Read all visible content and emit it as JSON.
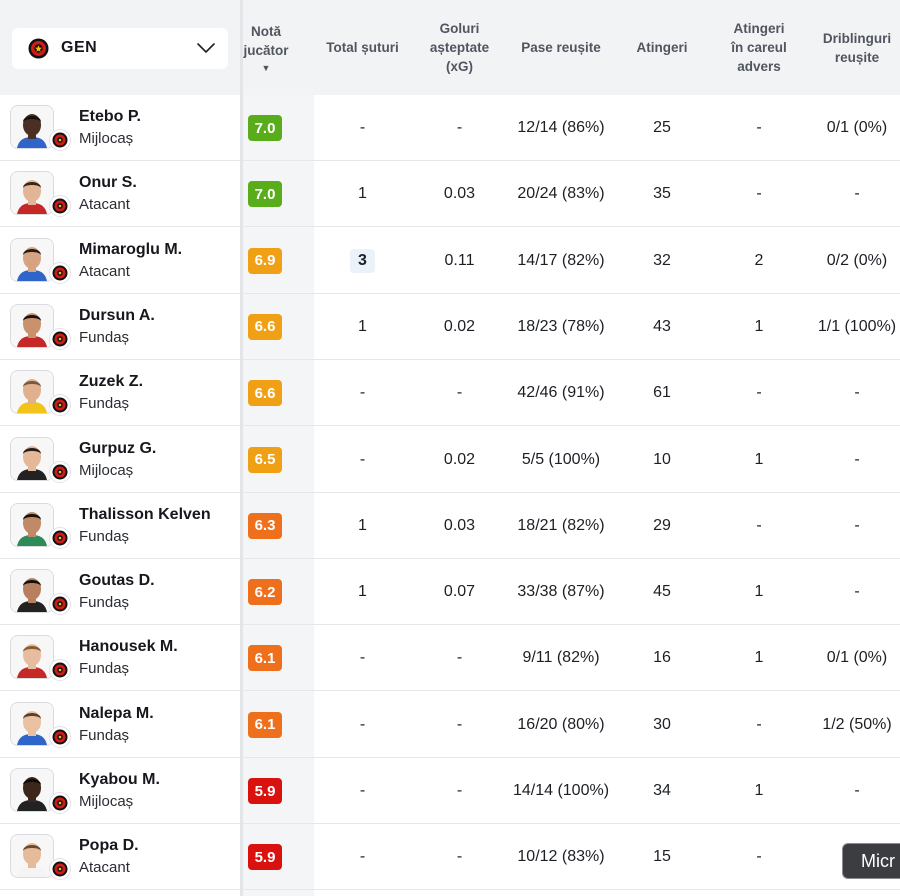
{
  "team": {
    "name": "GEN",
    "logo": "genclerbirligi-logo-icon"
  },
  "columns": [
    {
      "key": "rating",
      "lines": [
        "Notă",
        "jucător"
      ],
      "sorted": true,
      "sort_arrow": "▼"
    },
    {
      "key": "shots",
      "lines": [
        "Total șuturi"
      ]
    },
    {
      "key": "xg",
      "lines": [
        "Goluri",
        "așteptate",
        "(xG)"
      ]
    },
    {
      "key": "passes",
      "lines": [
        "Pase reușite"
      ]
    },
    {
      "key": "touches",
      "lines": [
        "Atingeri"
      ]
    },
    {
      "key": "box_touches",
      "lines": [
        "Atingeri",
        "în careul",
        "advers"
      ]
    },
    {
      "key": "dribbles",
      "lines": [
        "Driblinguri",
        "reușite"
      ]
    }
  ],
  "colors": {
    "green": "#5aad1a",
    "amber": "#f0a015",
    "orange": "#ee6f1c",
    "red": "#d9120f"
  },
  "players": [
    {
      "name": "Etebo P.",
      "position": "Mijlocaș",
      "rating": "7.0",
      "rating_color": "green",
      "shots": "-",
      "xg": "-",
      "passes": "12/14 (86%)",
      "touches": "25",
      "box_touches": "-",
      "dribbles": "0/1 (0%)",
      "skin": "#4a2f22",
      "hair": "#15100c",
      "shirt": "#2f64c8"
    },
    {
      "name": "Onur S.",
      "position": "Atacant",
      "rating": "7.0",
      "rating_color": "green",
      "shots": "1",
      "xg": "0.03",
      "passes": "20/24 (83%)",
      "touches": "35",
      "box_touches": "-",
      "dribbles": "-",
      "skin": "#e2b596",
      "hair": "#3a2618",
      "shirt": "#c62828"
    },
    {
      "name": "Mimaroglu M.",
      "position": "Atacant",
      "rating": "6.9",
      "rating_color": "amber",
      "shots": "3",
      "shots_highlight": true,
      "xg": "0.11",
      "passes": "14/17 (82%)",
      "touches": "32",
      "box_touches": "2",
      "dribbles": "0/2 (0%)",
      "skin": "#d6a383",
      "hair": "#2a1d15",
      "shirt": "#2f64c8"
    },
    {
      "name": "Dursun A.",
      "position": "Fundaș",
      "rating": "6.6",
      "rating_color": "amber",
      "shots": "1",
      "xg": "0.02",
      "passes": "18/23 (78%)",
      "touches": "43",
      "box_touches": "1",
      "dribbles": "1/1 (100%)",
      "skin": "#c9916c",
      "hair": "#1c130e",
      "shirt": "#c62828"
    },
    {
      "name": "Zuzek Z.",
      "position": "Fundaș",
      "rating": "6.6",
      "rating_color": "amber",
      "shots": "-",
      "xg": "-",
      "passes": "42/46 (91%)",
      "touches": "61",
      "box_touches": "-",
      "dribbles": "-",
      "skin": "#e0b08f",
      "hair": "#7a5a3a",
      "shirt": "#f2c318"
    },
    {
      "name": "Gurpuz G.",
      "position": "Mijlocaș",
      "rating": "6.5",
      "rating_color": "amber",
      "shots": "-",
      "xg": "0.02",
      "passes": "5/5 (100%)",
      "touches": "10",
      "box_touches": "1",
      "dribbles": "-",
      "skin": "#e4b899",
      "hair": "#2b1e16",
      "shirt": "#222222"
    },
    {
      "name": "Thalisson Kelven",
      "position": "Fundaș",
      "rating": "6.3",
      "rating_color": "orange",
      "shots": "1",
      "xg": "0.03",
      "passes": "18/21 (82%)",
      "touches": "29",
      "box_touches": "-",
      "dribbles": "-",
      "skin": "#c08a66",
      "hair": "#1a120d",
      "shirt": "#2e8b57"
    },
    {
      "name": "Goutas D.",
      "position": "Fundaș",
      "rating": "6.2",
      "rating_color": "orange",
      "shots": "1",
      "xg": "0.07",
      "passes": "33/38 (87%)",
      "touches": "45",
      "box_touches": "1",
      "dribbles": "-",
      "skin": "#b98060",
      "hair": "#15100c",
      "shirt": "#222222"
    },
    {
      "name": "Hanousek M.",
      "position": "Fundaș",
      "rating": "6.1",
      "rating_color": "orange",
      "shots": "-",
      "xg": "-",
      "passes": "9/11 (82%)",
      "touches": "16",
      "box_touches": "1",
      "dribbles": "0/1 (0%)",
      "skin": "#e6bd9e",
      "hair": "#8a5a30",
      "shirt": "#c62828"
    },
    {
      "name": "Nalepa M.",
      "position": "Fundaș",
      "rating": "6.1",
      "rating_color": "orange",
      "shots": "-",
      "xg": "-",
      "passes": "16/20 (80%)",
      "touches": "30",
      "box_touches": "-",
      "dribbles": "1/2 (50%)",
      "skin": "#e8c0a2",
      "hair": "#5a3e28",
      "shirt": "#2f64c8"
    },
    {
      "name": "Kyabou M.",
      "position": "Mijlocaș",
      "rating": "5.9",
      "rating_color": "red",
      "shots": "-",
      "xg": "-",
      "passes": "14/14 (100%)",
      "touches": "34",
      "box_touches": "1",
      "dribbles": "-",
      "skin": "#3d261b",
      "hair": "#0f0a07",
      "shirt": "#222222"
    },
    {
      "name": "Popa D.",
      "position": "Atacant",
      "rating": "5.9",
      "rating_color": "red",
      "shots": "-",
      "xg": "-",
      "passes": "10/12 (83%)",
      "touches": "15",
      "box_touches": "-",
      "dribbles": "-",
      "skin": "#e6bb9a",
      "hair": "#6b4a30",
      "shirt": "#f4f4f4"
    }
  ],
  "mini_button": {
    "label": "Micr"
  }
}
